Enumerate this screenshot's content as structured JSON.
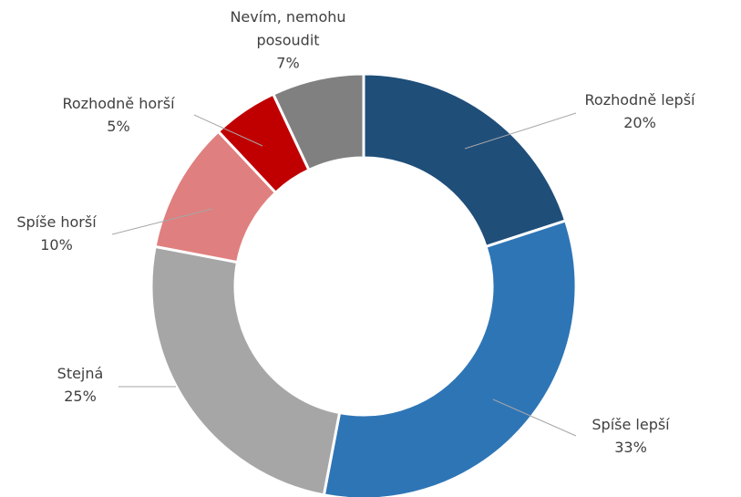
{
  "chart_data": {
    "type": "donut",
    "categories": [
      "Rozhodně lepší",
      "Spíše lepší",
      "Stejná",
      "Spíše horší",
      "Rozhodně horší",
      "Nevím, nemohu\nposoudit"
    ],
    "values": [
      20,
      33,
      25,
      10,
      5,
      7
    ],
    "value_labels": [
      "20%",
      "33%",
      "25%",
      "10%",
      "5%",
      "7%"
    ],
    "colors": [
      "#1f4e79",
      "#2e75b6",
      "#a6a6a6",
      "#e07f7f",
      "#c00000",
      "#808080"
    ]
  }
}
